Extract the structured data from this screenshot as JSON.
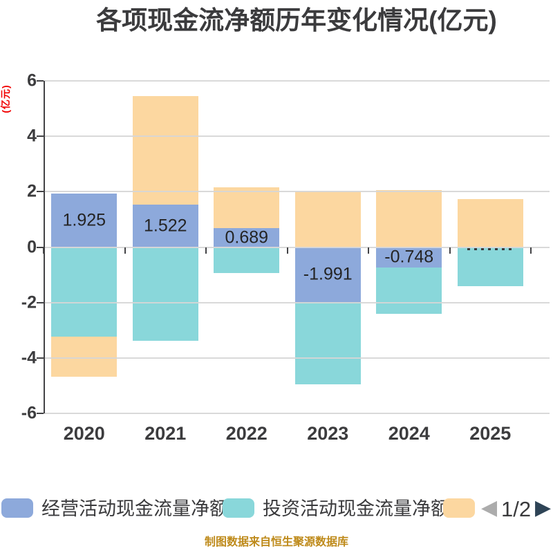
{
  "title": "各项现金流净额历年变化情况(亿元)",
  "source": "制图数据来自恒生聚源数据库",
  "y_axis": {
    "unit": "(亿元)",
    "ticks": [
      6,
      4,
      2,
      0,
      -2,
      -4,
      -6
    ]
  },
  "x_axis": {
    "labels": [
      "2020",
      "2021",
      "2022",
      "2023",
      "2024",
      "2025"
    ]
  },
  "chart_data": {
    "type": "bar",
    "stacked": true,
    "categories": [
      "2020",
      "2021",
      "2022",
      "2023",
      "2024",
      "2025"
    ],
    "series": [
      {
        "name": "经营活动现金流量净额",
        "color": "#8da9db",
        "values": [
          1.925,
          1.522,
          0.689,
          -1.991,
          -0.748,
          0
        ],
        "data_labels": [
          "1.925",
          "1.522",
          "0.689",
          "-1.991",
          "-0.748",
          ""
        ],
        "label_clipped": [
          false,
          false,
          false,
          false,
          false,
          true
        ]
      },
      {
        "name": "投资活动现金流量净额",
        "color": "#89d7da",
        "values": [
          -3.22,
          -3.38,
          -0.93,
          -2.96,
          -1.65,
          -1.4
        ]
      },
      {
        "name": "",
        "color": "#fcd7a0",
        "values": [
          -1.46,
          3.93,
          1.47,
          2.0,
          2.05,
          1.73
        ]
      }
    ],
    "ylim": [
      -6,
      6
    ],
    "grid": true,
    "legend_position": "bottom"
  },
  "legend": {
    "items": [
      {
        "label": "经营活动现金流量净额",
        "color": "#8da9db"
      },
      {
        "label": "投资活动现金流量净额",
        "color": "#89d7da"
      },
      {
        "label": "",
        "color": "#fcd7a0"
      }
    ],
    "pagination": {
      "prev": "◀",
      "label": "1/2",
      "next": "▶"
    }
  }
}
